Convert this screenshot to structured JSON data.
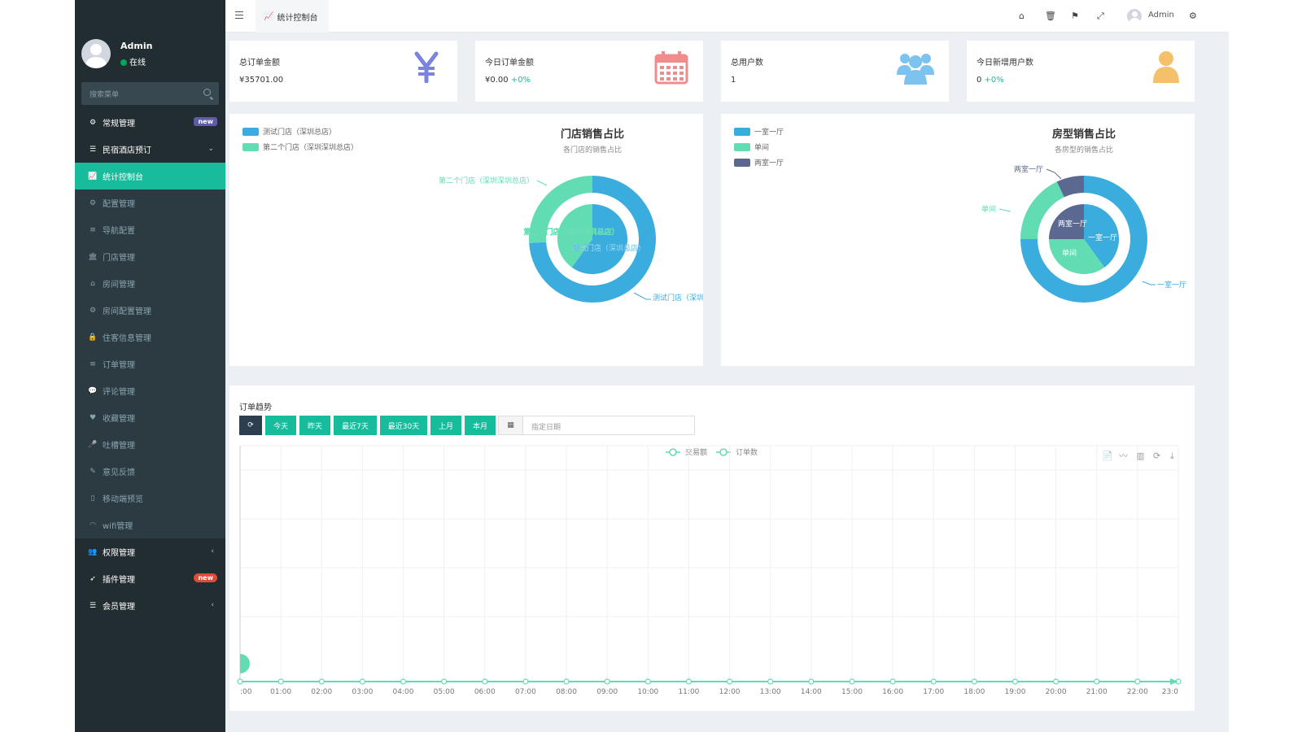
{
  "user": {
    "name": "Admin",
    "status": "在线"
  },
  "search": {
    "placeholder": "搜索菜单"
  },
  "sidebar": {
    "items": [
      {
        "label": "常规管理",
        "icon": "cogs-icon",
        "badge": "new"
      },
      {
        "label": "民宿酒店预订",
        "icon": "list-icon"
      },
      {
        "label": "统计控制台",
        "icon": "chart-icon"
      },
      {
        "label": "配置管理",
        "icon": "gear-icon"
      },
      {
        "label": "导航配置",
        "icon": "bars-icon"
      },
      {
        "label": "门店管理",
        "icon": "bank-icon"
      },
      {
        "label": "房间管理",
        "icon": "home-icon"
      },
      {
        "label": "房间配置管理",
        "icon": "gear-icon"
      },
      {
        "label": "住客信息管理",
        "icon": "lock-icon"
      },
      {
        "label": "订单管理",
        "icon": "bars-icon"
      },
      {
        "label": "评论管理",
        "icon": "comments-icon"
      },
      {
        "label": "收藏管理",
        "icon": "heart-icon"
      },
      {
        "label": "吐槽管理",
        "icon": "mic-icon"
      },
      {
        "label": "意见反馈",
        "icon": "pencil-icon"
      },
      {
        "label": "移动端预览",
        "icon": "mobile-icon"
      },
      {
        "label": "wifi管理",
        "icon": "wifi-icon"
      },
      {
        "label": "权限管理",
        "icon": "group-icon"
      },
      {
        "label": "插件管理",
        "icon": "rocket-icon",
        "badge": "new"
      },
      {
        "label": "会员管理",
        "icon": "list-icon"
      }
    ]
  },
  "header": {
    "tab": "统计控制台",
    "user": "Admin"
  },
  "stats": [
    {
      "label": "总订单金额",
      "value": "¥35701.00",
      "pct": "",
      "icon": "yen-icon",
      "color": "#7b83e0"
    },
    {
      "label": "今日订单金额",
      "value": "¥0.00 ",
      "pct": "+0%",
      "icon": "calendar-icon",
      "color": "#f08c8c"
    },
    {
      "label": "总用户数",
      "value": "1",
      "pct": "",
      "icon": "users-icon",
      "color": "#7cc3f0"
    },
    {
      "label": "今日新增用户数",
      "value": "0 ",
      "pct": "+0%",
      "icon": "user-icon",
      "color": "#f5c06b"
    }
  ],
  "colors": {
    "primary": "#18bc9c",
    "blue": "#3bacde",
    "mint": "#62dcb2",
    "slate": "#5b6990",
    "sidebar": "#222d32"
  },
  "store_chart": {
    "title": "门店销售占比",
    "subtitle": "各门店的销售占比",
    "legend": [
      "测试门店（深圳总店）",
      "第二个门店（深圳深圳总店）"
    ],
    "outer_labels": [
      "第二个门店（深圳深圳总店）",
      "测试门店（深圳总店"
    ],
    "inner_labels": [
      "第二个门店（深圳深圳总店）",
      "测试门店（深圳总店）"
    ]
  },
  "room_chart": {
    "title": "房型销售占比",
    "subtitle": "各房型的销售占比",
    "legend": [
      "一室一厅",
      "单间",
      "两室一厅"
    ],
    "outer_labels": [
      "两室一厅",
      "单间",
      "一室一厅"
    ],
    "inner_labels": [
      "两室一厅",
      "一室一厅",
      "单间"
    ]
  },
  "trend": {
    "title": "订单趋势",
    "buttons": [
      "今天",
      "昨天",
      "最近7天",
      "最近30天",
      "上月",
      "本月"
    ],
    "date_placeholder": "指定日期",
    "legend": [
      "交易额",
      "订单数"
    ],
    "x_labels": [
      ":00",
      "01:00",
      "02:00",
      "03:00",
      "04:00",
      "05:00",
      "06:00",
      "07:00",
      "08:00",
      "09:00",
      "10:00",
      "11:00",
      "12:00",
      "13:00",
      "14:00",
      "15:00",
      "16:00",
      "17:00",
      "18:00",
      "19:00",
      "20:00",
      "21:00",
      "22:00",
      "23:0"
    ]
  },
  "chart_data": [
    {
      "type": "pie",
      "title": "门店销售占比",
      "subtitle": "各门店的销售占比",
      "series": [
        {
          "name": "outer",
          "labels": [
            "测试门店（深圳总店）",
            "第二个门店（深圳深圳总店）"
          ],
          "values": [
            74,
            26
          ]
        },
        {
          "name": "inner",
          "labels": [
            "测试门店（深圳总店）",
            "第二个门店（深圳深圳总店）"
          ],
          "values": [
            60,
            40
          ]
        }
      ]
    },
    {
      "type": "pie",
      "title": "房型销售占比",
      "subtitle": "各房型的销售占比",
      "series": [
        {
          "name": "outer",
          "labels": [
            "一室一厅",
            "单间",
            "两室一厅"
          ],
          "values": [
            75,
            18,
            7
          ]
        },
        {
          "name": "inner",
          "labels": [
            "一室一厅",
            "单间",
            "两室一厅"
          ],
          "values": [
            40,
            35,
            25
          ]
        }
      ]
    },
    {
      "type": "line",
      "categories": [
        ":00",
        "01:00",
        "02:00",
        "03:00",
        "04:00",
        "05:00",
        "06:00",
        "07:00",
        "08:00",
        "09:00",
        "10:00",
        "11:00",
        "12:00",
        "13:00",
        "14:00",
        "15:00",
        "16:00",
        "17:00",
        "18:00",
        "19:00",
        "20:00",
        "21:00",
        "22:00",
        "23:0"
      ],
      "series": [
        {
          "name": "交易额",
          "values": [
            0,
            0,
            0,
            0,
            0,
            0,
            0,
            0,
            0,
            0,
            0,
            0,
            0,
            0,
            0,
            0,
            0,
            0,
            0,
            0,
            0,
            0,
            0,
            0
          ]
        },
        {
          "name": "订单数",
          "values": [
            0,
            0,
            0,
            0,
            0,
            0,
            0,
            0,
            0,
            0,
            0,
            0,
            0,
            0,
            0,
            0,
            0,
            0,
            0,
            0,
            0,
            0,
            0,
            0
          ]
        }
      ]
    }
  ]
}
